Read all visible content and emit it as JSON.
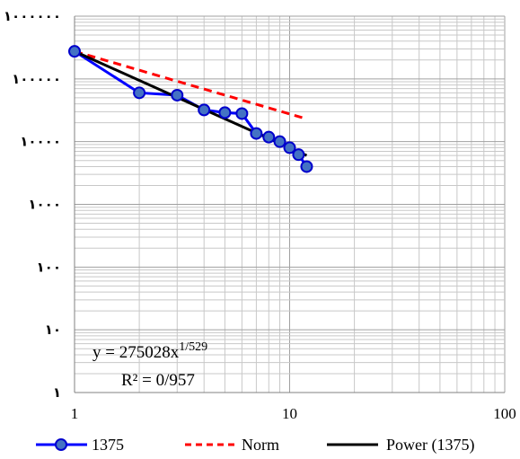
{
  "chart_data": {
    "type": "line",
    "title": "",
    "xlabel": "",
    "ylabel": "",
    "x_scale": "log",
    "y_scale": "log",
    "xlim": [
      1,
      100
    ],
    "ylim": [
      1,
      1000000
    ],
    "grid": true,
    "legend_position": "bottom",
    "x_tick_labels": [
      "1",
      "10",
      "100"
    ],
    "y_tick_labels": [
      "١",
      "١٠",
      "١٠٠",
      "١٠٠٠",
      "١٠٠٠٠",
      "١٠٠٠٠٠",
      "١٠٠٠٠٠٠"
    ],
    "series": [
      {
        "name": "1375",
        "color": "#0000ff",
        "marker": "circle",
        "x": [
          1,
          2,
          3,
          4,
          5,
          6,
          7,
          8,
          9,
          10,
          11,
          12
        ],
        "y": [
          275000,
          60000,
          55000,
          32000,
          29000,
          28000,
          13500,
          11800,
          10000,
          8000,
          6200,
          4000
        ]
      },
      {
        "name": "Norm",
        "color": "#ff0000",
        "style": "dashed",
        "x": [
          1,
          12
        ],
        "y": [
          275000,
          23000
        ]
      },
      {
        "name": "Power (1375)",
        "color": "#000000",
        "style": "trendline",
        "x": [
          1,
          12
        ],
        "y": [
          275028,
          6000
        ]
      }
    ],
    "annotation": {
      "equation_prefix": "y = 275028x",
      "equation_exponent": "1/529",
      "r_squared": "R² = 0/957"
    }
  }
}
